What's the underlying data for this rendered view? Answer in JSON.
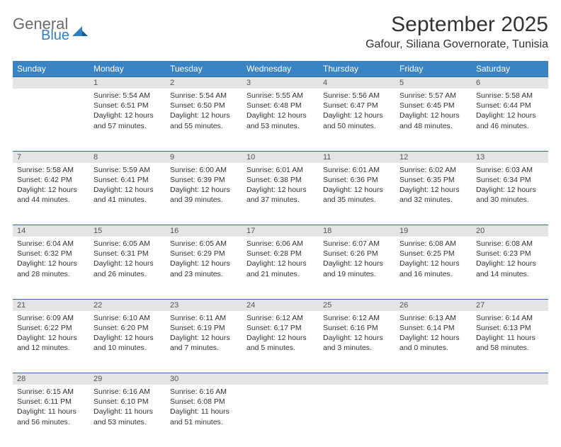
{
  "brand": {
    "line1": "General",
    "line2": "Blue",
    "icon_color": "#2f7fc2",
    "text_gray": "#6a6a6a"
  },
  "title": "September 2025",
  "location": "Gafour, Siliana Governorate, Tunisia",
  "colors": {
    "header_bg": "#3b84c4",
    "daynum_bg": "#e4e4e4",
    "row_border": "#2f6aa0",
    "text": "#333333",
    "page_bg": "#ffffff"
  },
  "fonts": {
    "title_size": 30,
    "location_size": 16,
    "th_size": 12,
    "cell_size": 10.5
  },
  "weekdays": [
    "Sunday",
    "Monday",
    "Tuesday",
    "Wednesday",
    "Thursday",
    "Friday",
    "Saturday"
  ],
  "weeks": [
    [
      null,
      {
        "n": "1",
        "sr": "Sunrise: 5:54 AM",
        "ss": "Sunset: 6:51 PM",
        "dl": "Daylight: 12 hours and 57 minutes."
      },
      {
        "n": "2",
        "sr": "Sunrise: 5:54 AM",
        "ss": "Sunset: 6:50 PM",
        "dl": "Daylight: 12 hours and 55 minutes."
      },
      {
        "n": "3",
        "sr": "Sunrise: 5:55 AM",
        "ss": "Sunset: 6:48 PM",
        "dl": "Daylight: 12 hours and 53 minutes."
      },
      {
        "n": "4",
        "sr": "Sunrise: 5:56 AM",
        "ss": "Sunset: 6:47 PM",
        "dl": "Daylight: 12 hours and 50 minutes."
      },
      {
        "n": "5",
        "sr": "Sunrise: 5:57 AM",
        "ss": "Sunset: 6:45 PM",
        "dl": "Daylight: 12 hours and 48 minutes."
      },
      {
        "n": "6",
        "sr": "Sunrise: 5:58 AM",
        "ss": "Sunset: 6:44 PM",
        "dl": "Daylight: 12 hours and 46 minutes."
      }
    ],
    [
      {
        "n": "7",
        "sr": "Sunrise: 5:58 AM",
        "ss": "Sunset: 6:42 PM",
        "dl": "Daylight: 12 hours and 44 minutes."
      },
      {
        "n": "8",
        "sr": "Sunrise: 5:59 AM",
        "ss": "Sunset: 6:41 PM",
        "dl": "Daylight: 12 hours and 41 minutes."
      },
      {
        "n": "9",
        "sr": "Sunrise: 6:00 AM",
        "ss": "Sunset: 6:39 PM",
        "dl": "Daylight: 12 hours and 39 minutes."
      },
      {
        "n": "10",
        "sr": "Sunrise: 6:01 AM",
        "ss": "Sunset: 6:38 PM",
        "dl": "Daylight: 12 hours and 37 minutes."
      },
      {
        "n": "11",
        "sr": "Sunrise: 6:01 AM",
        "ss": "Sunset: 6:36 PM",
        "dl": "Daylight: 12 hours and 35 minutes."
      },
      {
        "n": "12",
        "sr": "Sunrise: 6:02 AM",
        "ss": "Sunset: 6:35 PM",
        "dl": "Daylight: 12 hours and 32 minutes."
      },
      {
        "n": "13",
        "sr": "Sunrise: 6:03 AM",
        "ss": "Sunset: 6:34 PM",
        "dl": "Daylight: 12 hours and 30 minutes."
      }
    ],
    [
      {
        "n": "14",
        "sr": "Sunrise: 6:04 AM",
        "ss": "Sunset: 6:32 PM",
        "dl": "Daylight: 12 hours and 28 minutes."
      },
      {
        "n": "15",
        "sr": "Sunrise: 6:05 AM",
        "ss": "Sunset: 6:31 PM",
        "dl": "Daylight: 12 hours and 26 minutes."
      },
      {
        "n": "16",
        "sr": "Sunrise: 6:05 AM",
        "ss": "Sunset: 6:29 PM",
        "dl": "Daylight: 12 hours and 23 minutes."
      },
      {
        "n": "17",
        "sr": "Sunrise: 6:06 AM",
        "ss": "Sunset: 6:28 PM",
        "dl": "Daylight: 12 hours and 21 minutes."
      },
      {
        "n": "18",
        "sr": "Sunrise: 6:07 AM",
        "ss": "Sunset: 6:26 PM",
        "dl": "Daylight: 12 hours and 19 minutes."
      },
      {
        "n": "19",
        "sr": "Sunrise: 6:08 AM",
        "ss": "Sunset: 6:25 PM",
        "dl": "Daylight: 12 hours and 16 minutes."
      },
      {
        "n": "20",
        "sr": "Sunrise: 6:08 AM",
        "ss": "Sunset: 6:23 PM",
        "dl": "Daylight: 12 hours and 14 minutes."
      }
    ],
    [
      {
        "n": "21",
        "sr": "Sunrise: 6:09 AM",
        "ss": "Sunset: 6:22 PM",
        "dl": "Daylight: 12 hours and 12 minutes."
      },
      {
        "n": "22",
        "sr": "Sunrise: 6:10 AM",
        "ss": "Sunset: 6:20 PM",
        "dl": "Daylight: 12 hours and 10 minutes."
      },
      {
        "n": "23",
        "sr": "Sunrise: 6:11 AM",
        "ss": "Sunset: 6:19 PM",
        "dl": "Daylight: 12 hours and 7 minutes."
      },
      {
        "n": "24",
        "sr": "Sunrise: 6:12 AM",
        "ss": "Sunset: 6:17 PM",
        "dl": "Daylight: 12 hours and 5 minutes."
      },
      {
        "n": "25",
        "sr": "Sunrise: 6:12 AM",
        "ss": "Sunset: 6:16 PM",
        "dl": "Daylight: 12 hours and 3 minutes."
      },
      {
        "n": "26",
        "sr": "Sunrise: 6:13 AM",
        "ss": "Sunset: 6:14 PM",
        "dl": "Daylight: 12 hours and 0 minutes."
      },
      {
        "n": "27",
        "sr": "Sunrise: 6:14 AM",
        "ss": "Sunset: 6:13 PM",
        "dl": "Daylight: 11 hours and 58 minutes."
      }
    ],
    [
      {
        "n": "28",
        "sr": "Sunrise: 6:15 AM",
        "ss": "Sunset: 6:11 PM",
        "dl": "Daylight: 11 hours and 56 minutes."
      },
      {
        "n": "29",
        "sr": "Sunrise: 6:16 AM",
        "ss": "Sunset: 6:10 PM",
        "dl": "Daylight: 11 hours and 53 minutes."
      },
      {
        "n": "30",
        "sr": "Sunrise: 6:16 AM",
        "ss": "Sunset: 6:08 PM",
        "dl": "Daylight: 11 hours and 51 minutes."
      },
      null,
      null,
      null,
      null
    ]
  ]
}
